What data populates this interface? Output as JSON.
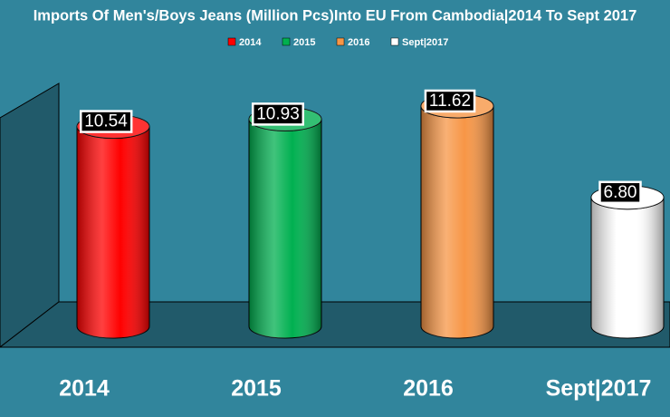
{
  "chart_data": {
    "type": "bar3d",
    "title": "Imports Of Men's/Boys Jeans (Million Pcs)Into EU From Cambodia|2014 To Sept 2017",
    "categories": [
      "2014",
      "2015",
      "2016",
      "Sept|2017"
    ],
    "values": [
      10.54,
      10.93,
      11.62,
      6.8
    ],
    "value_labels": [
      "10.54",
      "10.93",
      "11.62",
      "6.80"
    ],
    "colors": [
      "#ff0000",
      "#00b050",
      "#f79646",
      "#ffffff"
    ],
    "ylim": [
      0,
      12
    ]
  }
}
